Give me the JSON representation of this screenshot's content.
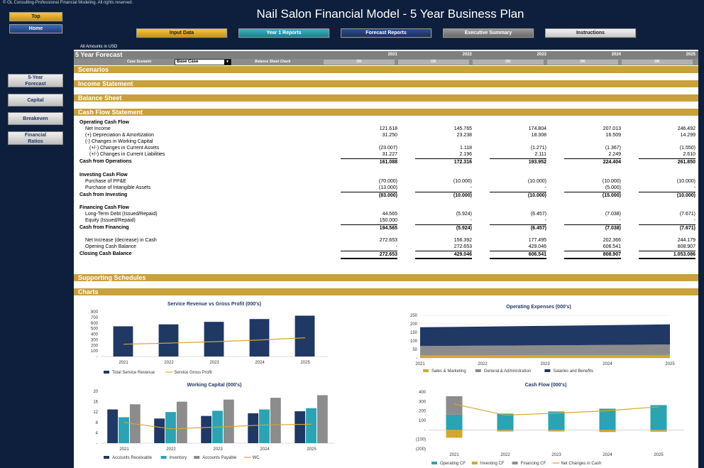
{
  "copyright": "© OL Consulting-Professional Financial Modeling. All rights reserved.",
  "title": "Nail Salon Financial Model - 5 Year Business Plan",
  "nav": {
    "top": "Top",
    "home": "Home",
    "input_data": "Input Data",
    "year1_reports": "Year 1 Reports",
    "forecast_reports": "Forecast Reports",
    "executive_summary": "Executive Summary",
    "instructions": "Instructions"
  },
  "side_nav": {
    "five_year_forecast": "5-Year\nForecast",
    "capital": "Capital",
    "breakeven": "Breakeven",
    "financial_ratios": "Financial\nRatios"
  },
  "amounts_label": "All Amounts in  USD",
  "forecast": {
    "title": "5 Year Forecast",
    "years": [
      "2021",
      "2022",
      "2023",
      "2024",
      "2025"
    ],
    "case_scenario_label": "Case Scenario",
    "case_scenario_value": "Base Case",
    "balance_check_label": "Balance Sheet Check",
    "balance_checks": [
      "OK",
      "OK",
      "OK",
      "OK",
      "OK"
    ]
  },
  "sections": {
    "scenarios": "Scenarios",
    "income_statement": "Income Statement",
    "balance_sheet": "Balance Sheet",
    "cash_flow_statement": "Cash Flow Statement",
    "supporting_schedules": "Supporting Schedules",
    "charts": "Charts"
  },
  "cash_flow": {
    "operating_header": "Operating Cash Flow",
    "net_income": {
      "label": "Net Income",
      "values": [
        "121.618",
        "145.765",
        "174.804",
        "207.013",
        "246.492"
      ]
    },
    "depreciation": {
      "label": "(+) Depreciation & Amortization",
      "values": [
        "31.250",
        "23.238",
        "18.308",
        "16.509",
        "14.299"
      ]
    },
    "wc_changes_label": "(-) Changes in Working Capital",
    "current_assets": {
      "label": "(+/-) Changes in Current Assets",
      "values": [
        "(23.007)",
        "1.118",
        "(1.271)",
        "(1.367)",
        "(1.550)"
      ]
    },
    "current_liabilities": {
      "label": "(+/-) Changes in Current Liabilities",
      "values": [
        "31.227",
        "2.196",
        "2.111",
        "2.249",
        "2.610"
      ]
    },
    "cash_from_operations": {
      "label": "Cash from Operations",
      "values": [
        "161.088",
        "172.316",
        "193.952",
        "224.404",
        "261.850"
      ]
    },
    "investing_header": "Investing Cash Flow",
    "ppe": {
      "label": "Purchase of PP&E",
      "values": [
        "(70.000)",
        "(10.000)",
        "(10.000)",
        "(10.000)",
        "(10.000)"
      ]
    },
    "intangibles": {
      "label": "Purchase of Intangible Assets",
      "values": [
        "(13.000)",
        "-",
        "-",
        "(5.000)",
        "-"
      ]
    },
    "cash_from_investing": {
      "label": "Cash from Investing",
      "values": [
        "(83.000)",
        "(10.000)",
        "(10.000)",
        "(15.000)",
        "(10.000)"
      ]
    },
    "financing_header": "Financing Cash Flow",
    "lt_debt": {
      "label": "Long-Term Debt (Issued/Repaid)",
      "values": [
        "44.565",
        "(5.924)",
        "(6.457)",
        "(7.038)",
        "(7.671)"
      ]
    },
    "equity": {
      "label": "Equity (Issued/Repaid)",
      "values": [
        "150.000",
        "-",
        "-",
        "-",
        "-"
      ]
    },
    "cash_from_financing": {
      "label": "Cash from Financing",
      "values": [
        "194.565",
        "(5.924)",
        "(6.457)",
        "(7.038)",
        "(7.671)"
      ]
    },
    "net_increase": {
      "label": "Net Increase (decrease) in Cash",
      "values": [
        "272.653",
        "156.392",
        "177.495",
        "202.366",
        "244.179"
      ]
    },
    "opening_balance": {
      "label": "Opening Cash Balance",
      "values": [
        "-",
        "272.653",
        "429.046",
        "606.541",
        "808.907"
      ]
    },
    "closing_balance": {
      "label": "Closing Cash Balance",
      "values": [
        "272.653",
        "429.046",
        "606.541",
        "808.907",
        "1.053.086"
      ]
    }
  },
  "colors": {
    "navy": "#1f3864",
    "gold": "#d4a72c",
    "teal": "#2aa3b3",
    "grey": "#8c8c8c",
    "section": "#c9a13b"
  },
  "chart_data": [
    {
      "type": "bar",
      "title": "Service Revenue vs Gross Profit (000's)",
      "categories": [
        "2021",
        "2022",
        "2023",
        "2024",
        "2025"
      ],
      "ylim": [
        0,
        800
      ],
      "yticks": [
        "800",
        "700",
        "600",
        "500",
        "400",
        "300",
        "200",
        "100",
        "-"
      ],
      "series": [
        {
          "name": "Total Service Revenue",
          "kind": "bar",
          "color": "#1f3864",
          "values": [
            540,
            575,
            620,
            670,
            730
          ]
        },
        {
          "name": "Service Gross Profit",
          "kind": "line",
          "color": "#d4a72c",
          "values": [
            220,
            240,
            265,
            295,
            335
          ]
        }
      ]
    },
    {
      "type": "area",
      "title": "Operating Expenses (000's)",
      "categories": [
        "2021",
        "2022",
        "2023",
        "2024",
        "2025"
      ],
      "ylim": [
        0,
        250
      ],
      "yticks": [
        "250",
        "200",
        "150",
        "100",
        "50",
        "-"
      ],
      "series": [
        {
          "name": "Sales & Marketing",
          "color": "#d4a72c",
          "values": [
            15,
            15,
            16,
            16,
            17
          ]
        },
        {
          "name": "General & Administration",
          "color": "#8c8c8c",
          "values": [
            55,
            57,
            58,
            60,
            62
          ]
        },
        {
          "name": "Salaries and Benefits",
          "color": "#1f3864",
          "values": [
            110,
            112,
            114,
            116,
            118
          ]
        }
      ]
    },
    {
      "type": "bar",
      "title": "Working Capital (000's)",
      "categories": [
        "2021",
        "2022",
        "2023",
        "2024",
        "2025"
      ],
      "ylim": [
        0,
        20
      ],
      "yticks": [
        "20",
        "16",
        "12",
        "8",
        "4",
        "-"
      ],
      "series": [
        {
          "name": "Accounts Receivable",
          "kind": "bar",
          "color": "#1f3864",
          "values": [
            13,
            9.5,
            10.5,
            11.5,
            12.3
          ]
        },
        {
          "name": "Inventory",
          "kind": "bar",
          "color": "#2aa3b3",
          "values": [
            10,
            12,
            12.5,
            13,
            13.5
          ]
        },
        {
          "name": "Accounts Payable",
          "kind": "bar",
          "color": "#8c8c8c",
          "values": [
            15,
            16,
            16.8,
            17.5,
            18.5
          ]
        },
        {
          "name": "WC",
          "kind": "line",
          "color": "#d4a72c",
          "values": [
            8,
            5.5,
            6.2,
            7,
            7.3
          ]
        }
      ]
    },
    {
      "type": "bar",
      "title": "Cash Flow (000's)",
      "categories": [
        "2021",
        "2022",
        "2023",
        "2024",
        "2025"
      ],
      "ylim": [
        -200,
        400
      ],
      "yticks": [
        "400",
        "300",
        "200",
        "100",
        "-",
        "(100)",
        "(200)"
      ],
      "series": [
        {
          "name": "Operating CF",
          "kind": "bar",
          "color": "#2aa3b3",
          "values": [
            161,
            172,
            194,
            224,
            262
          ]
        },
        {
          "name": "Investing CF",
          "kind": "bar",
          "color": "#d4a72c",
          "values": [
            -83,
            -10,
            -10,
            -15,
            -10
          ]
        },
        {
          "name": "Financing CF",
          "kind": "bar",
          "color": "#8c8c8c",
          "values": [
            195,
            -6,
            -6,
            -7,
            -8
          ]
        },
        {
          "name": "Net Changes in Cash",
          "kind": "line",
          "color": "#d4a72c",
          "values": [
            273,
            156,
            177,
            202,
            244
          ]
        }
      ]
    }
  ]
}
